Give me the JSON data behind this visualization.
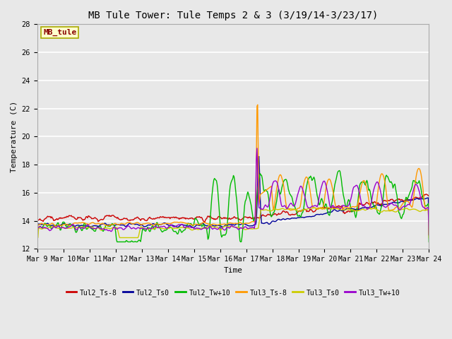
{
  "title": "MB Tule Tower: Tule Temps 2 & 3 (3/19/14-3/23/17)",
  "xlabel": "Time",
  "ylabel": "Temperature (C)",
  "ylim": [
    12,
    28
  ],
  "yticks": [
    12,
    14,
    16,
    18,
    20,
    22,
    24,
    26,
    28
  ],
  "bg_color": "#e8e8e8",
  "grid_color": "#ffffff",
  "annotation_text": "MB_tule",
  "annotation_bg": "#ffffcc",
  "annotation_edge": "#aaaa00",
  "annotation_text_color": "#880000",
  "series": [
    {
      "label": "Tul2_Ts-8",
      "color": "#cc0000",
      "lw": 1.0
    },
    {
      "label": "Tul2_Ts0",
      "color": "#000099",
      "lw": 1.0
    },
    {
      "label": "Tul2_Tw+10",
      "color": "#00bb00",
      "lw": 1.0
    },
    {
      "label": "Tul3_Ts-8",
      "color": "#ff9900",
      "lw": 1.0
    },
    {
      "label": "Tul3_Ts0",
      "color": "#cccc00",
      "lw": 1.0
    },
    {
      "label": "Tul3_Tw+10",
      "color": "#9900cc",
      "lw": 1.0
    }
  ],
  "x_tick_labels": [
    "Mar 9",
    "Mar 10",
    "Mar 11",
    "Mar 12",
    "Mar 13",
    "Mar 14",
    "Mar 15",
    "Mar 16",
    "Mar 17",
    "Mar 18",
    "Mar 19",
    "Mar 20",
    "Mar 21",
    "Mar 22",
    "Mar 23",
    "Mar 24"
  ],
  "font": "monospace",
  "title_fontsize": 10,
  "tick_fontsize": 7,
  "label_fontsize": 8
}
